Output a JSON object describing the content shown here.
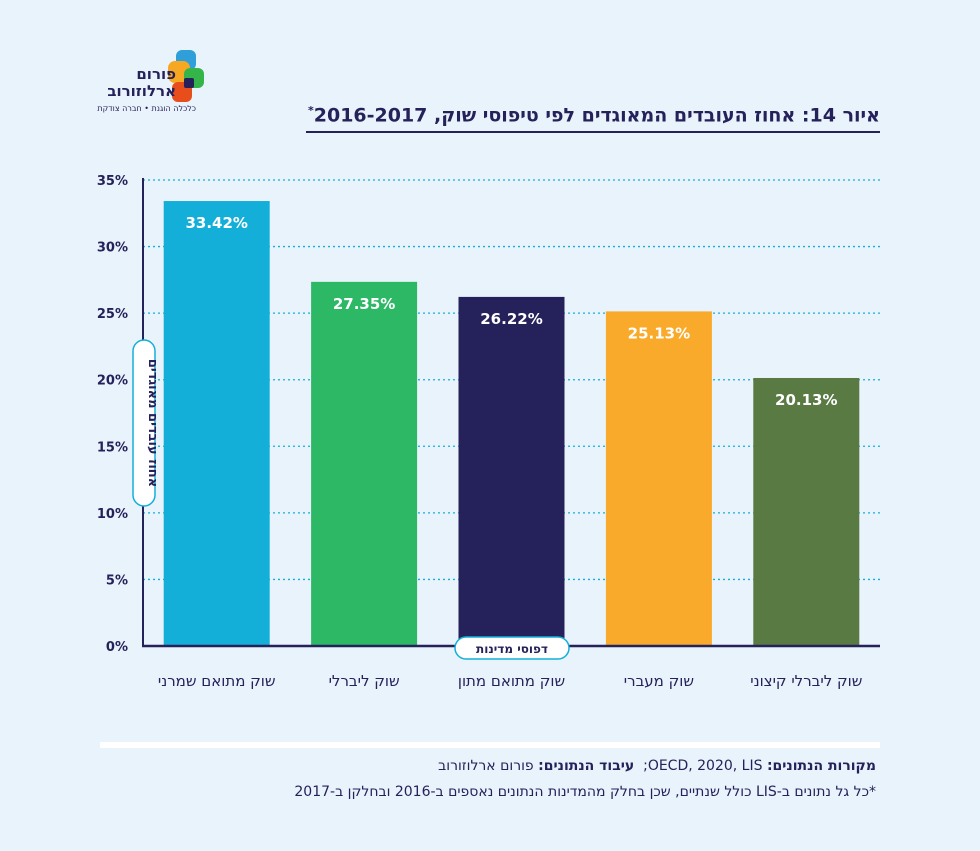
{
  "brand": {
    "name_line1": "פורום",
    "name_line2": "ארלוזורוב",
    "tagline": "כלכלה הוגנת • חברה צודקת",
    "colors": [
      "#f7a823",
      "#2f9fd9",
      "#35b44a",
      "#e84e1b",
      "#25215a"
    ]
  },
  "title": "איור 14: אחוז העובדים המאוגדים לפי טיפוסי שוק, 2016-2017",
  "title_mark": "*",
  "chart_data": {
    "type": "bar",
    "categories": [
      "שוק ליברלי קיצוני",
      "שוק מעברי",
      "שוק מתואם מתון",
      "שוק ליברלי",
      "שוק מתואם שמרני"
    ],
    "values": [
      20.13,
      25.13,
      26.22,
      27.35,
      33.42
    ],
    "value_labels": [
      "20.13%",
      "25.13%",
      "26.22%",
      "27.35%",
      "33.42%"
    ],
    "colors": [
      "#5a7a43",
      "#f9aa2a",
      "#25215a",
      "#2db866",
      "#13afd9"
    ],
    "ylabel": "אחוז עובדים מאוגדים",
    "xlabel": "דפוסי מדינות",
    "ylim": [
      0,
      35
    ],
    "yticks": [
      0,
      5,
      10,
      15,
      20,
      25,
      30,
      35
    ],
    "ytick_labels": [
      "0%",
      "5%",
      "10%",
      "15%",
      "20%",
      "25%",
      "30%",
      "35%"
    ],
    "grid": true
  },
  "footer": {
    "sources_label": "מקורות הנתונים:",
    "sources_value": "OECD, 2020, LIS",
    "processing_label": "עיבוד הנתונים:",
    "processing_value": "פורום ארלוזורוב",
    "note": "*כל גל נתונים ב-LIS כולל שנתיים, שכן בחלק מהמדינות הנתונים נאספים ב-2016 ובחלקן ב-2017"
  }
}
